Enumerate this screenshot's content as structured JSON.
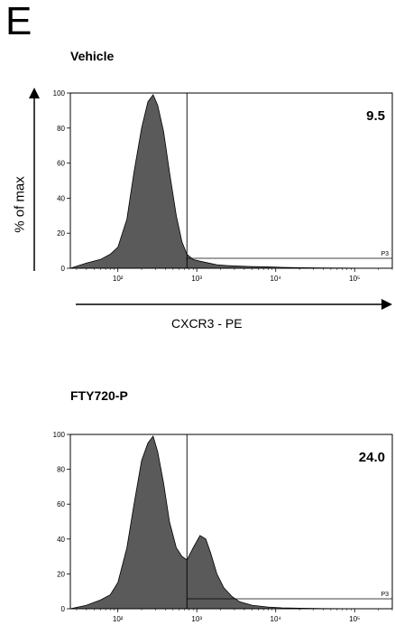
{
  "panel_letter": "E",
  "y_axis_label": "% of max",
  "x_axis_label": "CXCR3 - PE",
  "chart_data": [
    {
      "type": "area",
      "title": "Vehicle",
      "xscale": "log",
      "xlim": [
        25,
        300000
      ],
      "ylim": [
        0,
        100
      ],
      "xticks": [
        {
          "value": 100,
          "label": "10²"
        },
        {
          "value": 1000,
          "label": "10³"
        },
        {
          "value": 10000,
          "label": "10⁴"
        },
        {
          "value": 100000,
          "label": "10⁵"
        }
      ],
      "yticks": [
        0,
        20,
        40,
        60,
        80,
        100
      ],
      "gate_label": "P3",
      "gate_threshold": 750,
      "gate_percent": "9.5",
      "x": [
        25,
        40,
        60,
        80,
        100,
        130,
        160,
        200,
        240,
        280,
        320,
        380,
        450,
        550,
        650,
        750,
        900,
        1100,
        1400,
        1800,
        2500,
        3500,
        5000,
        8000,
        12000,
        20000,
        40000,
        80000,
        150000,
        300000
      ],
      "y": [
        0,
        3,
        5,
        8,
        12,
        28,
        55,
        80,
        95,
        99,
        93,
        78,
        55,
        30,
        15,
        8,
        5,
        4,
        3,
        2,
        1.5,
        1.2,
        1,
        0.8,
        0.5,
        0.3,
        0.2,
        0.1,
        0,
        0
      ],
      "fill": "#5a5a5a"
    },
    {
      "type": "area",
      "title": "FTY720-P",
      "xscale": "log",
      "xlim": [
        25,
        300000
      ],
      "ylim": [
        0,
        100
      ],
      "xticks": [
        {
          "value": 100,
          "label": "10²"
        },
        {
          "value": 1000,
          "label": "10³"
        },
        {
          "value": 10000,
          "label": "10⁴"
        },
        {
          "value": 100000,
          "label": "10⁵"
        }
      ],
      "yticks": [
        0,
        20,
        40,
        60,
        80,
        100
      ],
      "gate_label": "P3",
      "gate_threshold": 750,
      "gate_percent": "24.0",
      "x": [
        25,
        40,
        60,
        80,
        100,
        130,
        160,
        200,
        240,
        280,
        320,
        380,
        450,
        550,
        650,
        750,
        900,
        1100,
        1300,
        1500,
        1800,
        2200,
        2800,
        3500,
        5000,
        8000,
        12000,
        20000,
        40000,
        100000,
        300000
      ],
      "y": [
        0,
        2,
        5,
        8,
        15,
        35,
        60,
        85,
        95,
        99,
        90,
        72,
        50,
        35,
        30,
        28,
        35,
        42,
        40,
        32,
        20,
        12,
        7,
        4,
        2,
        1,
        0.5,
        0.3,
        0.1,
        0,
        0
      ],
      "fill": "#5a5a5a"
    }
  ]
}
